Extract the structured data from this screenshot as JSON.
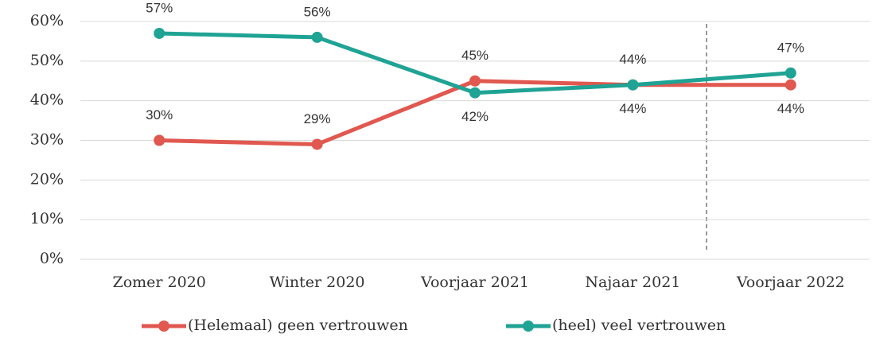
{
  "chart_data": {
    "type": "line",
    "categories": [
      "Zomer 2020",
      "Winter 2020",
      "Voorjaar 2021",
      "Najaar 2021",
      "Voorjaar 2022"
    ],
    "series": [
      {
        "name": "(Helemaal) geen vertrouwen",
        "color": "#e0584f",
        "values": [
          30,
          29,
          45,
          44,
          44
        ],
        "value_labels": [
          "30%",
          "29%",
          "45%",
          "44%",
          "44%"
        ]
      },
      {
        "name": "(heel) veel vertrouwen",
        "color": "#1fa394",
        "values": [
          57,
          56,
          42,
          44,
          47
        ],
        "value_labels": [
          "57%",
          "56%",
          "42%",
          "44%",
          "47%"
        ]
      }
    ],
    "ylim": [
      0,
      60
    ],
    "yticks": [
      {
        "value": 0,
        "label": "0%"
      },
      {
        "value": 10,
        "label": "10%"
      },
      {
        "value": 20,
        "label": "20%"
      },
      {
        "value": 30,
        "label": "30%"
      },
      {
        "value": 40,
        "label": "40%"
      },
      {
        "value": 50,
        "label": "50%"
      },
      {
        "value": 60,
        "label": "60%"
      }
    ],
    "grid": true,
    "legend": "bottom"
  }
}
